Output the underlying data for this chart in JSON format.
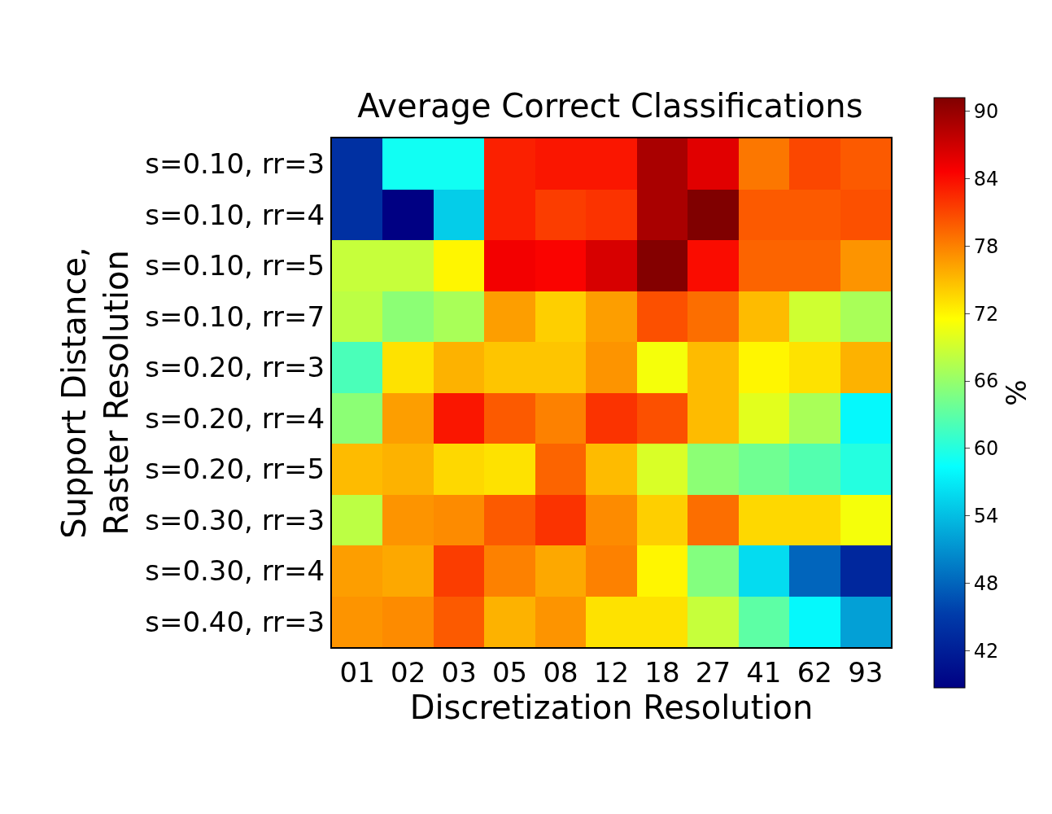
{
  "chart_data": {
    "type": "heatmap",
    "title": "Average Correct Classifications",
    "xlabel": "Discretization Resolution",
    "ylabel": "Support Distance,\nRaster Resolution",
    "clabel": "%",
    "categories": [
      "01",
      "02",
      "03",
      "05",
      "08",
      "12",
      "18",
      "27",
      "41",
      "62",
      "93"
    ],
    "y_categories": [
      "s=0.10, rr=3",
      "s=0.10, rr=4",
      "s=0.10, rr=5",
      "s=0.10, rr=7",
      "s=0.20, rr=3",
      "s=0.20, rr=4",
      "s=0.20, rr=5",
      "s=0.30, rr=3",
      "s=0.30, rr=4",
      "s=0.40, rr=3"
    ],
    "cells": [
      [
        44,
        59,
        59,
        83,
        83.5,
        83.5,
        89,
        86,
        78.5,
        81,
        80
      ],
      [
        44,
        38.7,
        55,
        83,
        81.5,
        82,
        89,
        91.2,
        80,
        80,
        80.5
      ],
      [
        68.5,
        68.5,
        72,
        85,
        84.5,
        86.5,
        91,
        84,
        79.5,
        79.5,
        77
      ],
      [
        68,
        65.5,
        67,
        76.5,
        74,
        76.5,
        80.5,
        79,
        75,
        69,
        67
      ],
      [
        62,
        73,
        75.5,
        74.5,
        74.5,
        77,
        71,
        75,
        72,
        73,
        75.5
      ],
      [
        65.5,
        76.5,
        83.5,
        80,
        78,
        82,
        80.5,
        75,
        70,
        67,
        58
      ],
      [
        75,
        75.5,
        73.5,
        73,
        79.5,
        75,
        69.5,
        65.5,
        64,
        62.5,
        60
      ],
      [
        68,
        77,
        77.5,
        80,
        82,
        77.5,
        74,
        79,
        73.5,
        73.5,
        71
      ],
      [
        76.5,
        76,
        81.5,
        78,
        76,
        78,
        72,
        65,
        56,
        48,
        43
      ],
      [
        77,
        77.5,
        80,
        75.5,
        77,
        73,
        73,
        68.5,
        63,
        58,
        52
      ]
    ],
    "clim": [
      38.7,
      91.2
    ],
    "cticks": [
      42,
      48,
      54,
      60,
      66,
      72,
      78,
      84,
      90
    ]
  }
}
